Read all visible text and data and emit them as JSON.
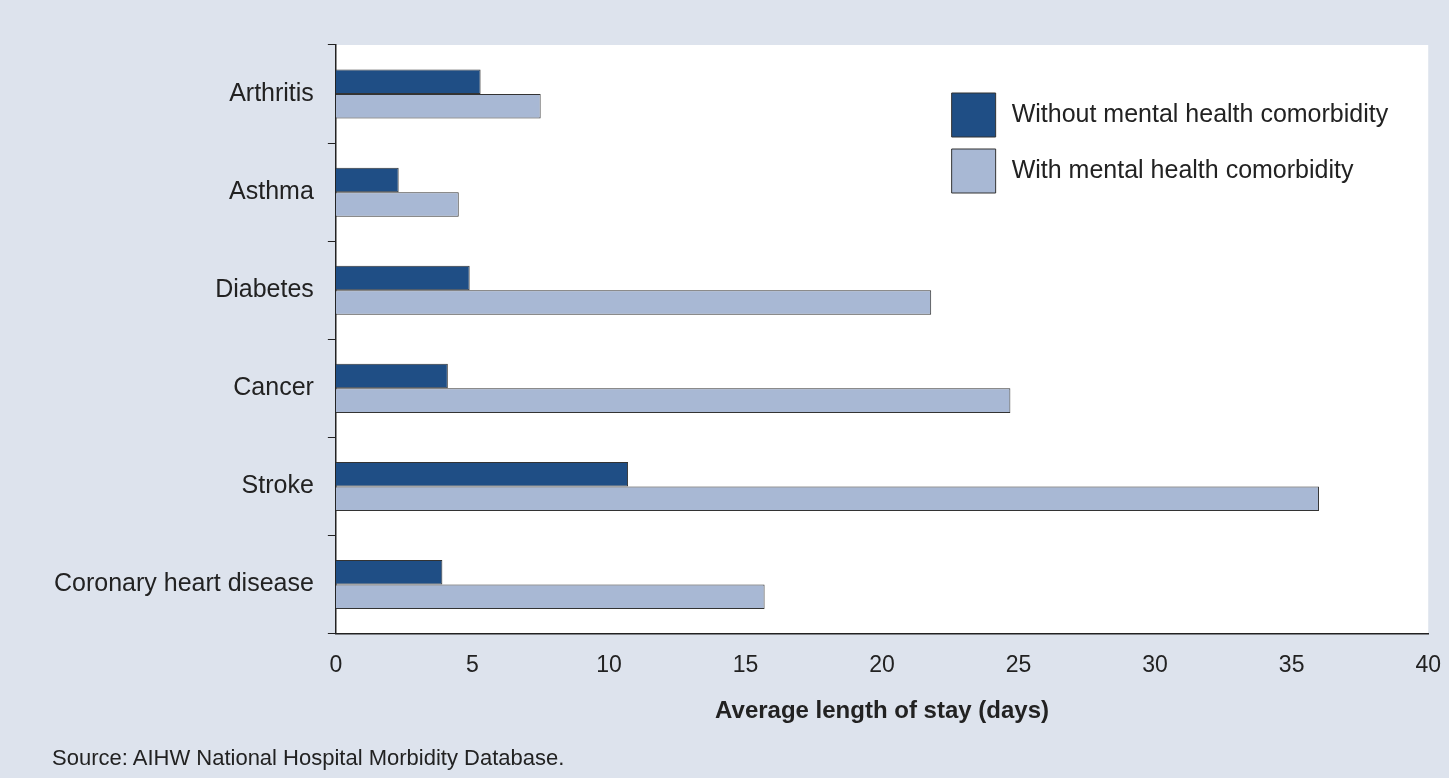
{
  "chart_data": {
    "type": "bar",
    "orientation": "horizontal",
    "xlabel": "Average length of stay (days)",
    "categories": [
      "Arthritis",
      "Asthma",
      "Diabetes",
      "Cancer",
      "Stroke",
      "Coronary heart disease"
    ],
    "series": [
      {
        "name": "Without mental health comorbidity",
        "color": "#1f4e85",
        "values": [
          5.3,
          2.3,
          4.9,
          4.1,
          10.7,
          3.9
        ]
      },
      {
        "name": "With mental health comorbidity",
        "color": "#a8b8d4",
        "values": [
          7.5,
          4.5,
          21.8,
          24.7,
          36.0,
          15.7
        ]
      }
    ],
    "xlim": [
      0,
      40
    ],
    "xticks": [
      0,
      5,
      10,
      15,
      20,
      25,
      30,
      35,
      40
    ],
    "grid": false,
    "legend": "top right",
    "annotations": [
      "Source: AIHW National Hospital Morbidity Database."
    ]
  }
}
